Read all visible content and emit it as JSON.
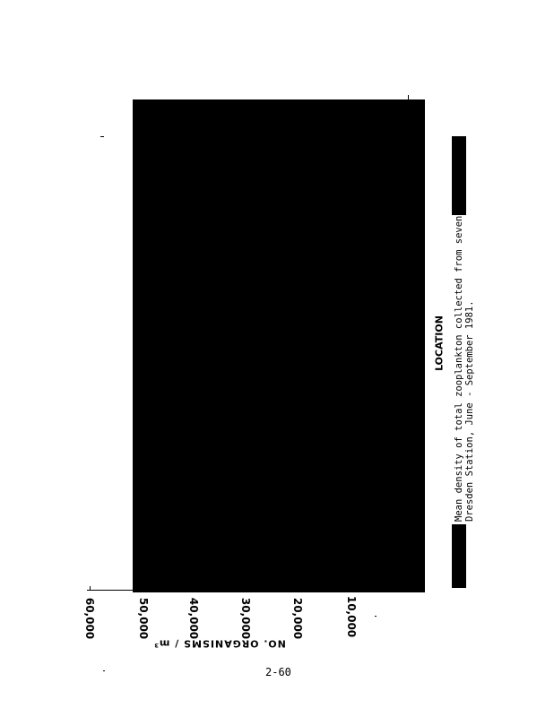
{
  "chart_data": {
    "type": "bar",
    "orientation": "rotated page (value axis horizontal)",
    "xlabel": "LOCATION",
    "ylabel": "NO. ORGANISMS / m³",
    "ytick_labels": [
      "60,000",
      "50,000",
      "40,000",
      "30,000",
      "20,000",
      "10,000"
    ],
    "ylim": [
      0,
      60000
    ],
    "categories": [],
    "values": [],
    "note_visible": "plot area fully obscured (solid black) in scan"
  },
  "caption": {
    "line1": "Mean density of total zooplankton collected from seven",
    "line2": "Dresden Station, June - September 1981."
  },
  "page_number": "2-60"
}
